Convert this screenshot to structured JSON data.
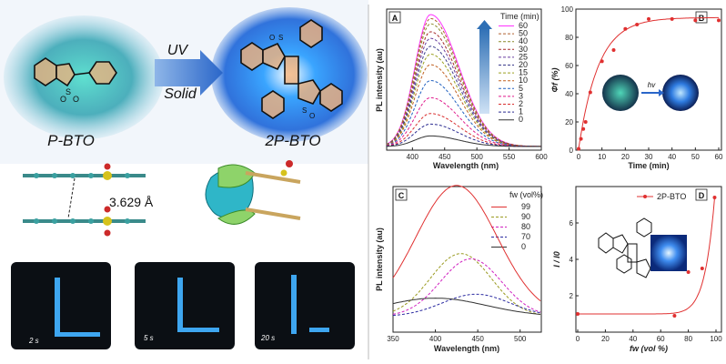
{
  "scheme": {
    "reactant": "P-BTO",
    "product": "2P-BTO",
    "condition_1": "UV",
    "condition_2": "Solid",
    "stacking_distance": "3.629 Å"
  },
  "photos": [
    "2 s",
    "5 s",
    "20 s"
  ],
  "chart_data": [
    {
      "panel": "A",
      "type": "line",
      "xlabel": "Wavelength (nm)",
      "ylabel": "PL intensity (au)",
      "xlim": [
        360,
        600
      ],
      "xticks": [
        400,
        450,
        500,
        550,
        600
      ],
      "legend_title": "Time (min)",
      "legend_position": "top-right",
      "peak_x": 428,
      "series": [
        {
          "name": "60",
          "color": "#ff33ff",
          "style": "solid",
          "peak": 1.0
        },
        {
          "name": "50",
          "color": "#b06030",
          "style": "dashed",
          "peak": 0.97
        },
        {
          "name": "40",
          "color": "#8a8a2a",
          "style": "dashed",
          "peak": 0.93
        },
        {
          "name": "30",
          "color": "#a52a2a",
          "style": "dashed",
          "peak": 0.87
        },
        {
          "name": "25",
          "color": "#6a3fa0",
          "style": "dashed",
          "peak": 0.82
        },
        {
          "name": "20",
          "color": "#3c3c8c",
          "style": "dashed",
          "peak": 0.76
        },
        {
          "name": "15",
          "color": "#9aa020",
          "style": "dashed",
          "peak": 0.7
        },
        {
          "name": "10",
          "color": "#c06020",
          "style": "dashed",
          "peak": 0.62
        },
        {
          "name": "5",
          "color": "#2060c0",
          "style": "dashed",
          "peak": 0.5
        },
        {
          "name": "3",
          "color": "#e01a8c",
          "style": "dashed",
          "peak": 0.37
        },
        {
          "name": "2",
          "color": "#d93030",
          "style": "dashed",
          "peak": 0.25
        },
        {
          "name": "1",
          "color": "#2a2a90",
          "style": "dashed",
          "peak": 0.17
        },
        {
          "name": "0",
          "color": "#333333",
          "style": "solid",
          "peak": 0.08
        }
      ]
    },
    {
      "panel": "B",
      "type": "scatter",
      "xlabel": "Time (min)",
      "ylabel": "Φf (%)",
      "inset_label": "hv",
      "xlim": [
        0,
        60
      ],
      "ylim": [
        0,
        100
      ],
      "xticks": [
        0,
        10,
        20,
        30,
        40,
        50,
        60
      ],
      "yticks": [
        0,
        20,
        40,
        60,
        80,
        100
      ],
      "color": "#e03030",
      "x": [
        0,
        1,
        2,
        3,
        5,
        10,
        15,
        20,
        25,
        30,
        40,
        50,
        60
      ],
      "y": [
        1,
        8,
        15,
        20,
        41,
        63,
        71,
        86,
        89,
        93,
        93,
        92,
        92
      ]
    },
    {
      "panel": "C",
      "type": "line",
      "xlabel": "Wavelength (nm)",
      "ylabel": "PL intensity (au)",
      "xlim": [
        350,
        525
      ],
      "xticks": [
        350,
        400,
        450,
        500
      ],
      "legend_title": "fw (vol%)",
      "legend_position": "top-right",
      "series": [
        {
          "name": "99",
          "color": "#e03030",
          "style": "solid",
          "peak_x": 425,
          "peak": 1.0,
          "width": 48
        },
        {
          "name": "90",
          "color": "#9a9a20",
          "style": "dashed",
          "peak_x": 430,
          "peak": 0.48,
          "width": 36
        },
        {
          "name": "80",
          "color": "#d020c0",
          "style": "dashed",
          "peak_x": 442,
          "peak": 0.44,
          "width": 36
        },
        {
          "name": "70",
          "color": "#2a2aa0",
          "style": "dashed",
          "peak_x": 448,
          "peak": 0.17,
          "width": 40
        },
        {
          "name": "0",
          "color": "#333333",
          "style": "solid",
          "peak_x": 400,
          "peak": 0.14,
          "width": 60
        }
      ]
    },
    {
      "panel": "D",
      "type": "scatter",
      "xlabel": "fw (vol %)",
      "ylabel": "I / I0",
      "xlim": [
        0,
        100
      ],
      "ylim": [
        0,
        8
      ],
      "xticks": [
        0,
        20,
        40,
        60,
        80,
        100
      ],
      "yticks": [
        2,
        4,
        6
      ],
      "legend": "2P-BTO",
      "legend_position": "top-right",
      "color": "#e03030",
      "x": [
        0,
        70,
        80,
        90,
        99
      ],
      "y": [
        1.0,
        0.9,
        3.3,
        3.5,
        7.4
      ]
    }
  ]
}
